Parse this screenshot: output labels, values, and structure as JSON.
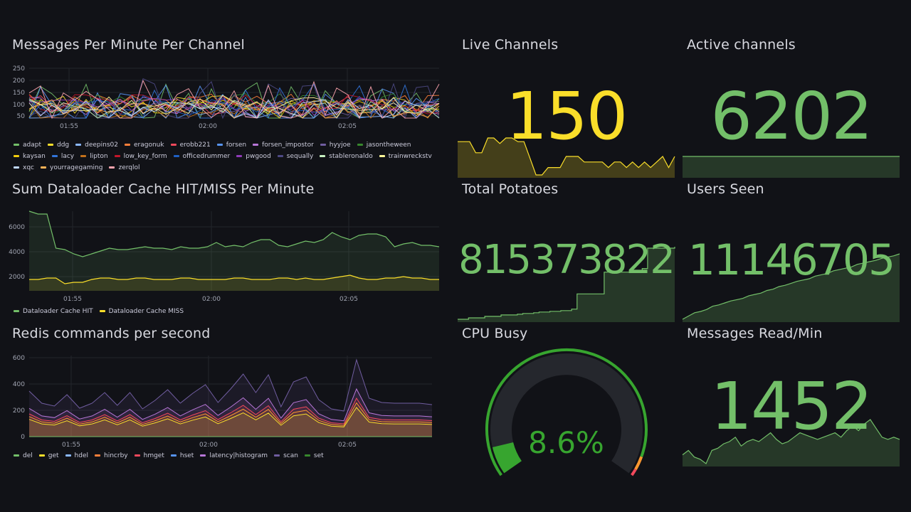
{
  "colors": {
    "green": "#73bf69",
    "yellow": "#fade2a",
    "dark_green": "#56a64b",
    "orange": "#ff9830",
    "red": "#f2495c"
  },
  "panels": {
    "messages": {
      "title": "Messages Per Minute Per Channel",
      "yticks": [
        "250",
        "200",
        "150",
        "100",
        "50"
      ],
      "xticks": [
        "01:55",
        "02:00",
        "02:05"
      ],
      "legend": [
        {
          "name": "adapt",
          "color": "#73bf69"
        },
        {
          "name": "ddg",
          "color": "#fade2a"
        },
        {
          "name": "deepins02",
          "color": "#8ab8ff"
        },
        {
          "name": "eragonuk",
          "color": "#ff7f3a"
        },
        {
          "name": "erobb221",
          "color": "#f2495c"
        },
        {
          "name": "forsen",
          "color": "#5794f2"
        },
        {
          "name": "forsen_impostor",
          "color": "#b877d9"
        },
        {
          "name": "hyyjoe",
          "color": "#705da0"
        },
        {
          "name": "jasontheween",
          "color": "#37872d"
        },
        {
          "name": "kaysan",
          "color": "#f2cc0c"
        },
        {
          "name": "lacy",
          "color": "#3274d9"
        },
        {
          "name": "lipton",
          "color": "#c4711b"
        },
        {
          "name": "low_key_form",
          "color": "#c4162a"
        },
        {
          "name": "officedrummer",
          "color": "#1f60c4"
        },
        {
          "name": "pwgood",
          "color": "#8f3bb8"
        },
        {
          "name": "sequally",
          "color": "#4e4a85"
        },
        {
          "name": "stableronaldo",
          "color": "#c8f2c2"
        },
        {
          "name": "trainwreckstv",
          "color": "#fff899"
        },
        {
          "name": "xqc",
          "color": "#c0d8ff"
        },
        {
          "name": "yourragegaming",
          "color": "#ffb357"
        },
        {
          "name": "zerqlol",
          "color": "#ffa6b0"
        }
      ]
    },
    "cache": {
      "title": "Sum Dataloader Cache HIT/MISS Per Minute",
      "yticks": [
        "6000",
        "4000",
        "2000"
      ],
      "xticks": [
        "01:55",
        "02:00",
        "02:05"
      ],
      "legend": [
        {
          "name": "Dataloader Cache HIT",
          "color": "#73bf69"
        },
        {
          "name": "Dataloader Cache MISS",
          "color": "#fade2a"
        }
      ]
    },
    "redis": {
      "title": "Redis commands per second",
      "yticks": [
        "600",
        "400",
        "200",
        "0"
      ],
      "xticks": [
        "01:55",
        "02:00",
        "02:05"
      ],
      "legend": [
        {
          "name": "del",
          "color": "#73bf69"
        },
        {
          "name": "get",
          "color": "#fade2a"
        },
        {
          "name": "hdel",
          "color": "#8ab8ff"
        },
        {
          "name": "hincrby",
          "color": "#ff7f3a"
        },
        {
          "name": "hmget",
          "color": "#f2495c"
        },
        {
          "name": "hset",
          "color": "#5794f2"
        },
        {
          "name": "latency|histogram",
          "color": "#b877d9"
        },
        {
          "name": "scan",
          "color": "#705da0"
        },
        {
          "name": "set",
          "color": "#37872d"
        }
      ]
    },
    "live_channels": {
      "title": "Live Channels",
      "value": "150",
      "spark": [
        0.9,
        0.9,
        0.9,
        0.6,
        0.6,
        1.0,
        1.0,
        0.85,
        1.0,
        1.0,
        0.9,
        0.9,
        0.45,
        0.0,
        0.0,
        0.2,
        0.2,
        0.2,
        0.5,
        0.5,
        0.5,
        0.35,
        0.35,
        0.35,
        0.35,
        0.2,
        0.35,
        0.35,
        0.2,
        0.35,
        0.2,
        0.35,
        0.2,
        0.35,
        0.5,
        0.2,
        0.5
      ]
    },
    "active_channels": {
      "title": "Active channels",
      "value": "6202",
      "spark": [
        0.5,
        0.5,
        0.5,
        0.5,
        0.5,
        0.5,
        0.5,
        0.5,
        0.5,
        0.5,
        0.5,
        0.5,
        0.5,
        0.5,
        0.5,
        0.5,
        0.5,
        0.5,
        0.5,
        0.5,
        0.5
      ]
    },
    "total_potatoes": {
      "title": "Total Potatoes",
      "value": "815373822",
      "spark": [
        0.0,
        0.0,
        0.02,
        0.02,
        0.02,
        0.04,
        0.04,
        0.04,
        0.06,
        0.06,
        0.06,
        0.07,
        0.08,
        0.08,
        0.09,
        0.1,
        0.1,
        0.11,
        0.11,
        0.12,
        0.12,
        0.14,
        0.35,
        0.35,
        0.35,
        0.35,
        0.35,
        0.65,
        0.65,
        0.65,
        0.65,
        0.65,
        0.66,
        0.66,
        0.7,
        0.98,
        0.98,
        0.98,
        0.98,
        0.98,
        1.0
      ]
    },
    "users_seen": {
      "title": "Users Seen",
      "value": "11146705",
      "spark": [
        0.0,
        0.05,
        0.1,
        0.12,
        0.15,
        0.2,
        0.22,
        0.25,
        0.28,
        0.3,
        0.32,
        0.36,
        0.38,
        0.4,
        0.44,
        0.46,
        0.5,
        0.52,
        0.55,
        0.58,
        0.6,
        0.62,
        0.66,
        0.68,
        0.7,
        0.74,
        0.76,
        0.78,
        0.8,
        0.84,
        0.86,
        0.88,
        0.9,
        0.93,
        0.95,
        0.97,
        1.0
      ]
    },
    "cpu_busy": {
      "title": "CPU Busy",
      "value": "8.6%",
      "fraction": 0.086
    },
    "messages_read": {
      "title": "Messages Read/Min",
      "value": "1452",
      "spark": [
        0.2,
        0.3,
        0.15,
        0.1,
        0.0,
        0.3,
        0.35,
        0.45,
        0.5,
        0.6,
        0.4,
        0.5,
        0.55,
        0.5,
        0.6,
        0.7,
        0.55,
        0.45,
        0.5,
        0.6,
        0.7,
        0.65,
        0.6,
        0.55,
        0.6,
        0.65,
        0.7,
        0.6,
        0.75,
        0.85,
        0.75,
        0.9,
        1.0,
        0.8,
        0.6,
        0.55,
        0.6,
        0.55
      ]
    }
  }
}
